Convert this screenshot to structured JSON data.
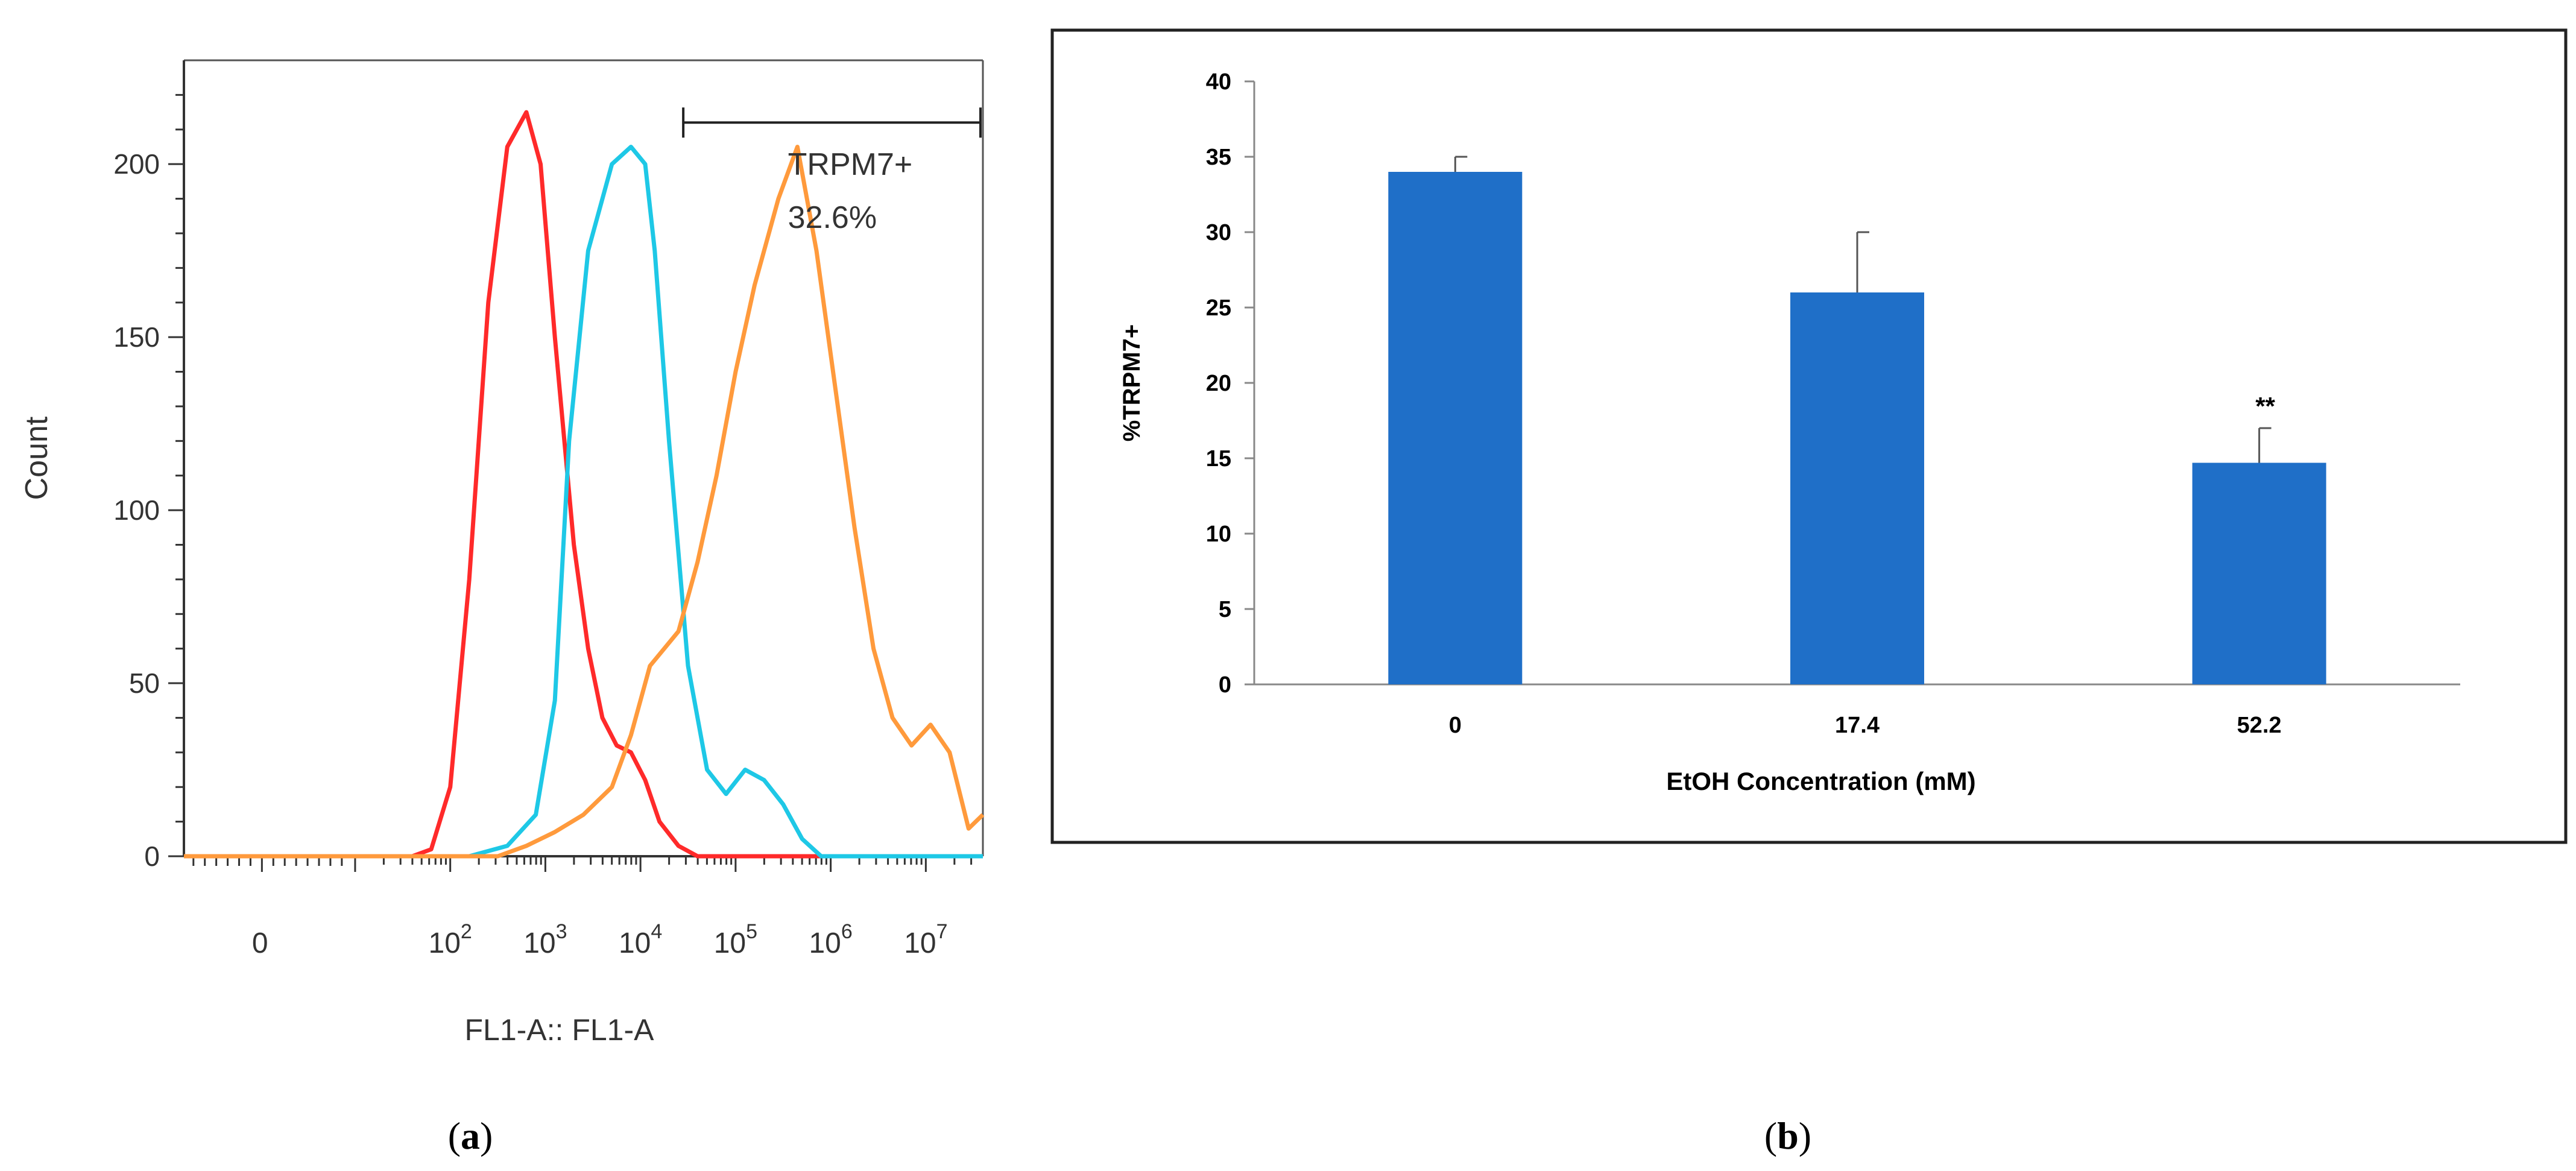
{
  "figure": {
    "panel_a_caption": {
      "open": "(",
      "letter": "a",
      "close": ")"
    },
    "panel_b_caption": {
      "open": "(",
      "letter": "b",
      "close": ")"
    }
  },
  "colors": {
    "red": "#ff2a2a",
    "cyan": "#1ec8e6",
    "orange": "#ff9a3c",
    "bar": "#1f6fc8"
  },
  "chart_data": [
    {
      "type": "line",
      "title": "",
      "xlabel": "FL1-A:: FL1-A",
      "ylabel": "Count",
      "ylim": [
        0,
        230
      ],
      "yticks": [
        "0",
        "50",
        "100",
        "150",
        "200"
      ],
      "xticks": [
        {
          "base": "0",
          "exp": ""
        },
        {
          "base": "10",
          "exp": "2"
        },
        {
          "base": "10",
          "exp": "3"
        },
        {
          "base": "10",
          "exp": "4"
        },
        {
          "base": "10",
          "exp": "5"
        },
        {
          "base": "10",
          "exp": "6"
        },
        {
          "base": "10",
          "exp": "7"
        }
      ],
      "gate": {
        "label": "TRPM7+",
        "percent": "32.6%",
        "from_log10": 4.45,
        "to_log10": 7.6
      },
      "series": [
        {
          "name": "red",
          "points": [
            [
              -0.8,
              0
            ],
            [
              1.6,
              0
            ],
            [
              1.8,
              2
            ],
            [
              2.0,
              20
            ],
            [
              2.2,
              80
            ],
            [
              2.4,
              160
            ],
            [
              2.6,
              205
            ],
            [
              2.8,
              215
            ],
            [
              2.95,
              200
            ],
            [
              3.1,
              150
            ],
            [
              3.3,
              90
            ],
            [
              3.45,
              60
            ],
            [
              3.6,
              40
            ],
            [
              3.75,
              32
            ],
            [
              3.9,
              30
            ],
            [
              4.05,
              22
            ],
            [
              4.2,
              10
            ],
            [
              4.4,
              3
            ],
            [
              4.6,
              0
            ],
            [
              7.6,
              0
            ]
          ]
        },
        {
          "name": "cyan",
          "points": [
            [
              -0.8,
              0
            ],
            [
              2.2,
              0
            ],
            [
              2.6,
              3
            ],
            [
              2.9,
              12
            ],
            [
              3.1,
              45
            ],
            [
              3.25,
              120
            ],
            [
              3.45,
              175
            ],
            [
              3.7,
              200
            ],
            [
              3.9,
              205
            ],
            [
              4.05,
              200
            ],
            [
              4.15,
              175
            ],
            [
              4.3,
              120
            ],
            [
              4.5,
              55
            ],
            [
              4.7,
              25
            ],
            [
              4.9,
              18
            ],
            [
              5.1,
              25
            ],
            [
              5.3,
              22
            ],
            [
              5.5,
              15
            ],
            [
              5.7,
              5
            ],
            [
              5.9,
              0
            ],
            [
              7.6,
              0
            ]
          ]
        },
        {
          "name": "orange",
          "points": [
            [
              -0.8,
              0
            ],
            [
              2.5,
              0
            ],
            [
              2.8,
              3
            ],
            [
              3.1,
              7
            ],
            [
              3.4,
              12
            ],
            [
              3.7,
              20
            ],
            [
              3.9,
              35
            ],
            [
              4.1,
              55
            ],
            [
              4.4,
              65
            ],
            [
              4.6,
              85
            ],
            [
              4.8,
              110
            ],
            [
              5.0,
              140
            ],
            [
              5.2,
              165
            ],
            [
              5.45,
              190
            ],
            [
              5.65,
              205
            ],
            [
              5.85,
              175
            ],
            [
              6.05,
              135
            ],
            [
              6.25,
              95
            ],
            [
              6.45,
              60
            ],
            [
              6.65,
              40
            ],
            [
              6.85,
              32
            ],
            [
              7.05,
              38
            ],
            [
              7.25,
              30
            ],
            [
              7.45,
              8
            ],
            [
              7.6,
              12
            ]
          ]
        }
      ]
    },
    {
      "type": "bar",
      "title": "",
      "xlabel": "EtOH Concentration (mM)",
      "ylabel": "%TRPM7+",
      "ylim": [
        0,
        40
      ],
      "yticks": [
        "0",
        "5",
        "10",
        "15",
        "20",
        "25",
        "30",
        "35",
        "40"
      ],
      "categories": [
        "0",
        "17.4",
        "52.2"
      ],
      "values": [
        34,
        26,
        14.7
      ],
      "errors": [
        1,
        4,
        2.3
      ],
      "annotations": [
        "",
        "",
        "**"
      ]
    }
  ]
}
